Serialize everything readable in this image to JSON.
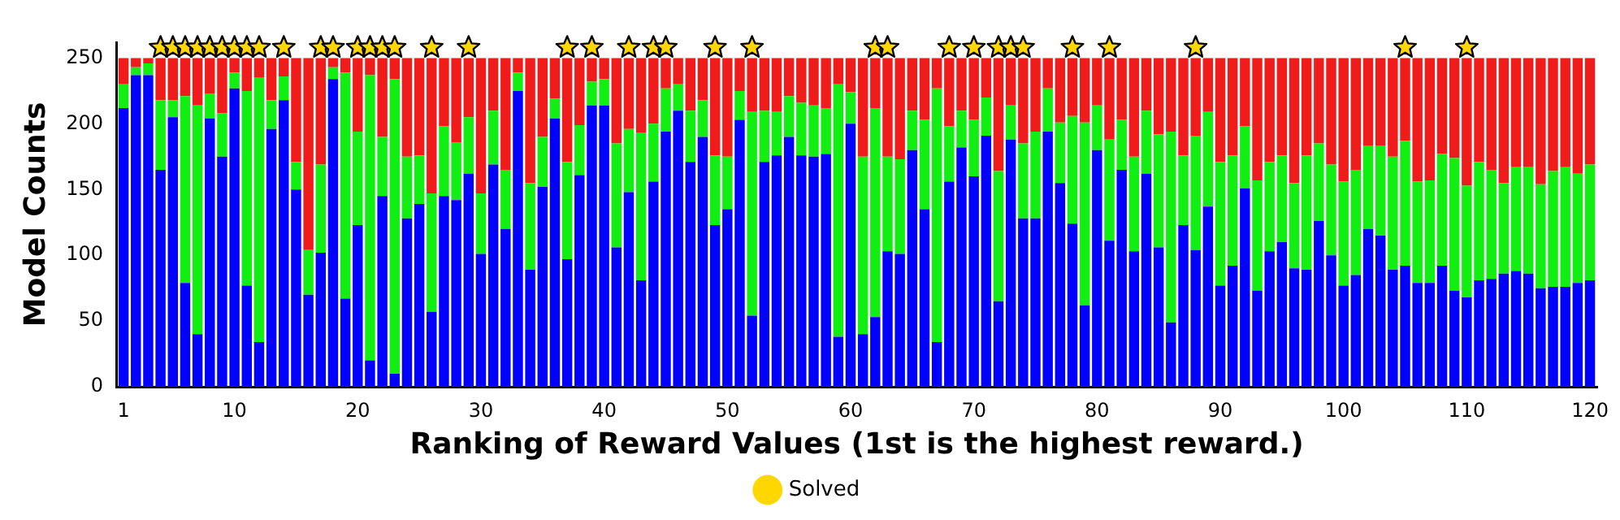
{
  "chart_data": {
    "type": "bar",
    "stacked": true,
    "xlabel": "Ranking of Reward Values (1st is the highest reward.)",
    "ylabel": "Model Counts",
    "x": [
      1,
      2,
      3,
      4,
      5,
      6,
      7,
      8,
      9,
      10,
      11,
      12,
      13,
      14,
      15,
      16,
      17,
      18,
      19,
      20,
      21,
      22,
      23,
      24,
      25,
      26,
      27,
      28,
      29,
      30,
      31,
      32,
      33,
      34,
      35,
      36,
      37,
      38,
      39,
      40,
      41,
      42,
      43,
      44,
      45,
      46,
      47,
      48,
      49,
      50,
      51,
      52,
      53,
      54,
      55,
      56,
      57,
      58,
      59,
      60,
      61,
      62,
      63,
      64,
      65,
      66,
      67,
      68,
      69,
      70,
      71,
      72,
      73,
      74,
      75,
      76,
      77,
      78,
      79,
      80,
      81,
      82,
      83,
      84,
      85,
      86,
      87,
      88,
      89,
      90,
      91,
      92,
      93,
      94,
      95,
      96,
      97,
      98,
      99,
      100,
      101,
      102,
      103,
      104,
      105,
      106,
      107,
      108,
      109,
      110,
      111,
      112,
      113,
      114,
      115,
      116,
      117,
      118,
      119,
      120
    ],
    "xlim": [
      0.4,
      120.6
    ],
    "xticks": [
      1,
      10,
      20,
      30,
      40,
      50,
      60,
      70,
      80,
      90,
      100,
      110,
      120
    ],
    "ylim": [
      0,
      262
    ],
    "yticks": [
      0,
      50,
      100,
      150,
      200,
      250
    ],
    "grid": false,
    "legend": "bottom",
    "series": [
      {
        "color": "#0000ff",
        "values": [
          212,
          237,
          237,
          165,
          205,
          79,
          40,
          204,
          175,
          227,
          77,
          34,
          196,
          218,
          150,
          70,
          102,
          234,
          67,
          123,
          20,
          145,
          10,
          128,
          139,
          57,
          145,
          142,
          162,
          101,
          169,
          120,
          225,
          89,
          152,
          204,
          97,
          161,
          214,
          214,
          106,
          148,
          81,
          156,
          194,
          210,
          171,
          190,
          123,
          135,
          203,
          54,
          171,
          176,
          190,
          176,
          175,
          177,
          38,
          200,
          40,
          53,
          103,
          101,
          180,
          135,
          34,
          156,
          182,
          160,
          191,
          65,
          188,
          128,
          128,
          194,
          155,
          124,
          62,
          180,
          111,
          165,
          103,
          162,
          106,
          49,
          123,
          104,
          137,
          77,
          92,
          151,
          73,
          103,
          110,
          90,
          89,
          126,
          100,
          77,
          85,
          120,
          115,
          89,
          92,
          79,
          79,
          92,
          73,
          68,
          81,
          82,
          86,
          88,
          86,
          75,
          76,
          76,
          79,
          81
        ]
      },
      {
        "color": "#11ee11",
        "values": [
          18,
          6,
          9,
          53,
          13,
          142,
          174,
          19,
          33,
          12,
          148,
          201,
          22,
          18,
          21,
          34,
          67,
          9,
          172,
          71,
          217,
          45,
          224,
          47,
          37,
          90,
          53,
          44,
          43,
          46,
          41,
          45,
          14,
          66,
          38,
          15,
          74,
          38,
          18,
          20,
          79,
          48,
          112,
          44,
          33,
          20,
          39,
          28,
          53,
          40,
          22,
          155,
          39,
          33,
          31,
          40,
          39,
          35,
          192,
          24,
          135,
          159,
          72,
          72,
          30,
          68,
          193,
          42,
          28,
          43,
          29,
          99,
          26,
          57,
          66,
          33,
          46,
          82,
          139,
          34,
          77,
          38,
          72,
          48,
          86,
          145,
          53,
          87,
          72,
          94,
          84,
          47,
          84,
          68,
          66,
          65,
          87,
          59,
          69,
          79,
          80,
          63,
          68,
          86,
          95,
          77,
          78,
          85,
          101,
          85,
          90,
          83,
          69,
          79,
          81,
          79,
          88,
          91,
          83,
          88
        ]
      },
      {
        "color": "#f01c1c",
        "values": [
          20,
          7,
          4,
          32,
          32,
          29,
          36,
          27,
          42,
          11,
          25,
          15,
          32,
          14,
          79,
          146,
          81,
          7,
          11,
          56,
          13,
          60,
          16,
          75,
          74,
          103,
          52,
          64,
          45,
          103,
          40,
          85,
          11,
          95,
          60,
          31,
          79,
          51,
          18,
          16,
          65,
          54,
          57,
          50,
          23,
          20,
          40,
          32,
          74,
          75,
          25,
          41,
          40,
          41,
          29,
          34,
          36,
          38,
          20,
          26,
          75,
          38,
          75,
          77,
          40,
          47,
          23,
          52,
          40,
          47,
          30,
          86,
          36,
          65,
          56,
          23,
          49,
          44,
          49,
          36,
          62,
          47,
          75,
          40,
          58,
          56,
          74,
          59,
          41,
          79,
          74,
          52,
          93,
          79,
          74,
          95,
          74,
          65,
          81,
          94,
          85,
          67,
          67,
          75,
          63,
          94,
          93,
          73,
          76,
          97,
          79,
          85,
          95,
          83,
          83,
          96,
          86,
          83,
          88,
          81
        ]
      },
      {
        "type": "scatter",
        "name": "Solved",
        "color": "#ffd700",
        "marker": "star",
        "x": [
          4,
          5,
          6,
          7,
          8,
          9,
          10,
          11,
          12,
          14,
          17,
          18,
          20,
          21,
          22,
          23,
          26,
          29,
          37,
          39,
          42,
          44,
          45,
          49,
          52,
          62,
          63,
          68,
          70,
          72,
          73,
          74,
          78,
          81,
          88,
          105,
          110
        ],
        "values": [
          258,
          258,
          258,
          258,
          258,
          258,
          258,
          258,
          258,
          258,
          258,
          258,
          258,
          258,
          258,
          258,
          258,
          258,
          258,
          258,
          258,
          258,
          258,
          258,
          258,
          258,
          258,
          258,
          258,
          258,
          258,
          258,
          258,
          258,
          258,
          258,
          258
        ]
      }
    ]
  }
}
